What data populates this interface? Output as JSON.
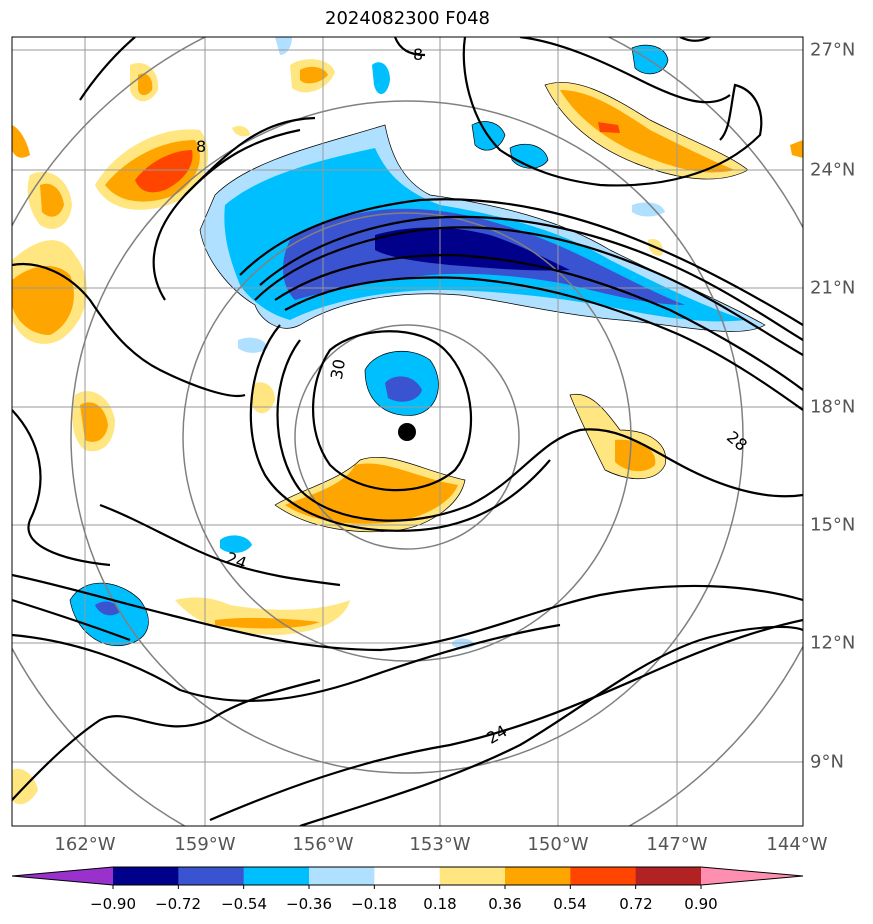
{
  "title": "2024082300 F048",
  "lon_labels": [
    "162°W",
    "159°W",
    "156°W",
    "153°W",
    "150°W",
    "147°W",
    "144°W"
  ],
  "lat_labels": [
    "27°N",
    "24°N",
    "21°N",
    "18°N",
    "15°N",
    "12°N",
    "9°N"
  ],
  "contour_labels": [
    "8",
    "8",
    "30",
    "28",
    "24",
    "24"
  ],
  "colorbar": {
    "ticks": [
      "−0.90",
      "−0.72",
      "−0.54",
      "−0.36",
      "−0.18",
      "0.18",
      "0.36",
      "0.54",
      "0.72",
      "0.90"
    ],
    "colors": [
      "#9932cc",
      "#00008b",
      "#3a53d0",
      "#00bfff",
      "#b0e0ff",
      "#ffffff",
      "#ffe680",
      "#ffa500",
      "#ff4500",
      "#b22222",
      "#ff8fb0"
    ]
  },
  "storm_center": {
    "lon": -153.9,
    "lat": 17.3
  }
}
